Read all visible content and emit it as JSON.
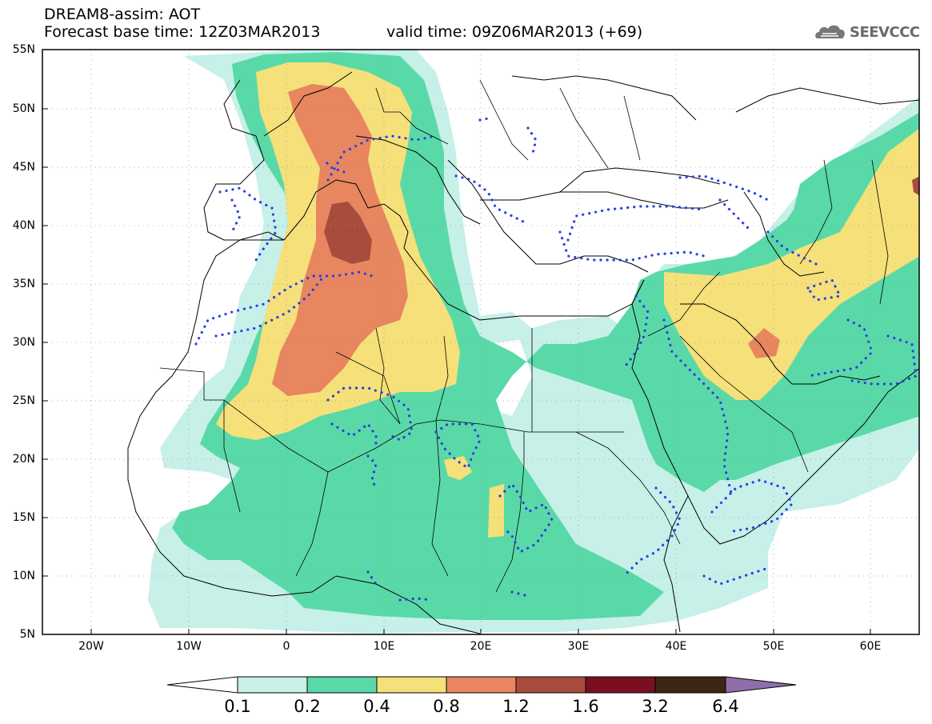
{
  "header": {
    "title": "DREAM8-assim: AOT",
    "forecast_base": "Forecast base time: 12Z03MAR2013",
    "valid_time": "valid time: 09Z06MAR2013 (+69)"
  },
  "logo": {
    "text": "SEEVCCC",
    "icon": "cloud-icon"
  },
  "map": {
    "lon_range": [
      -25,
      65
    ],
    "lat_range": [
      5,
      55
    ],
    "y_ticks": [
      "55N",
      "50N",
      "45N",
      "40N",
      "35N",
      "30N",
      "25N",
      "20N",
      "15N",
      "10N",
      "5N"
    ],
    "x_ticks": [
      "20W",
      "10W",
      "0",
      "10E",
      "20E",
      "30E",
      "40E",
      "50E",
      "60E"
    ],
    "grid": true
  },
  "colorbar": {
    "labels": [
      "0.1",
      "0.2",
      "0.4",
      "0.8",
      "1.2",
      "1.6",
      "3.2",
      "6.4"
    ],
    "colors": [
      "#ffffff",
      "#c6f0e8",
      "#5ad9a8",
      "#f5e07a",
      "#e8865f",
      "#a84d3d",
      "#7a0f22",
      "#3f2513",
      "#8e6ea9"
    ]
  }
}
